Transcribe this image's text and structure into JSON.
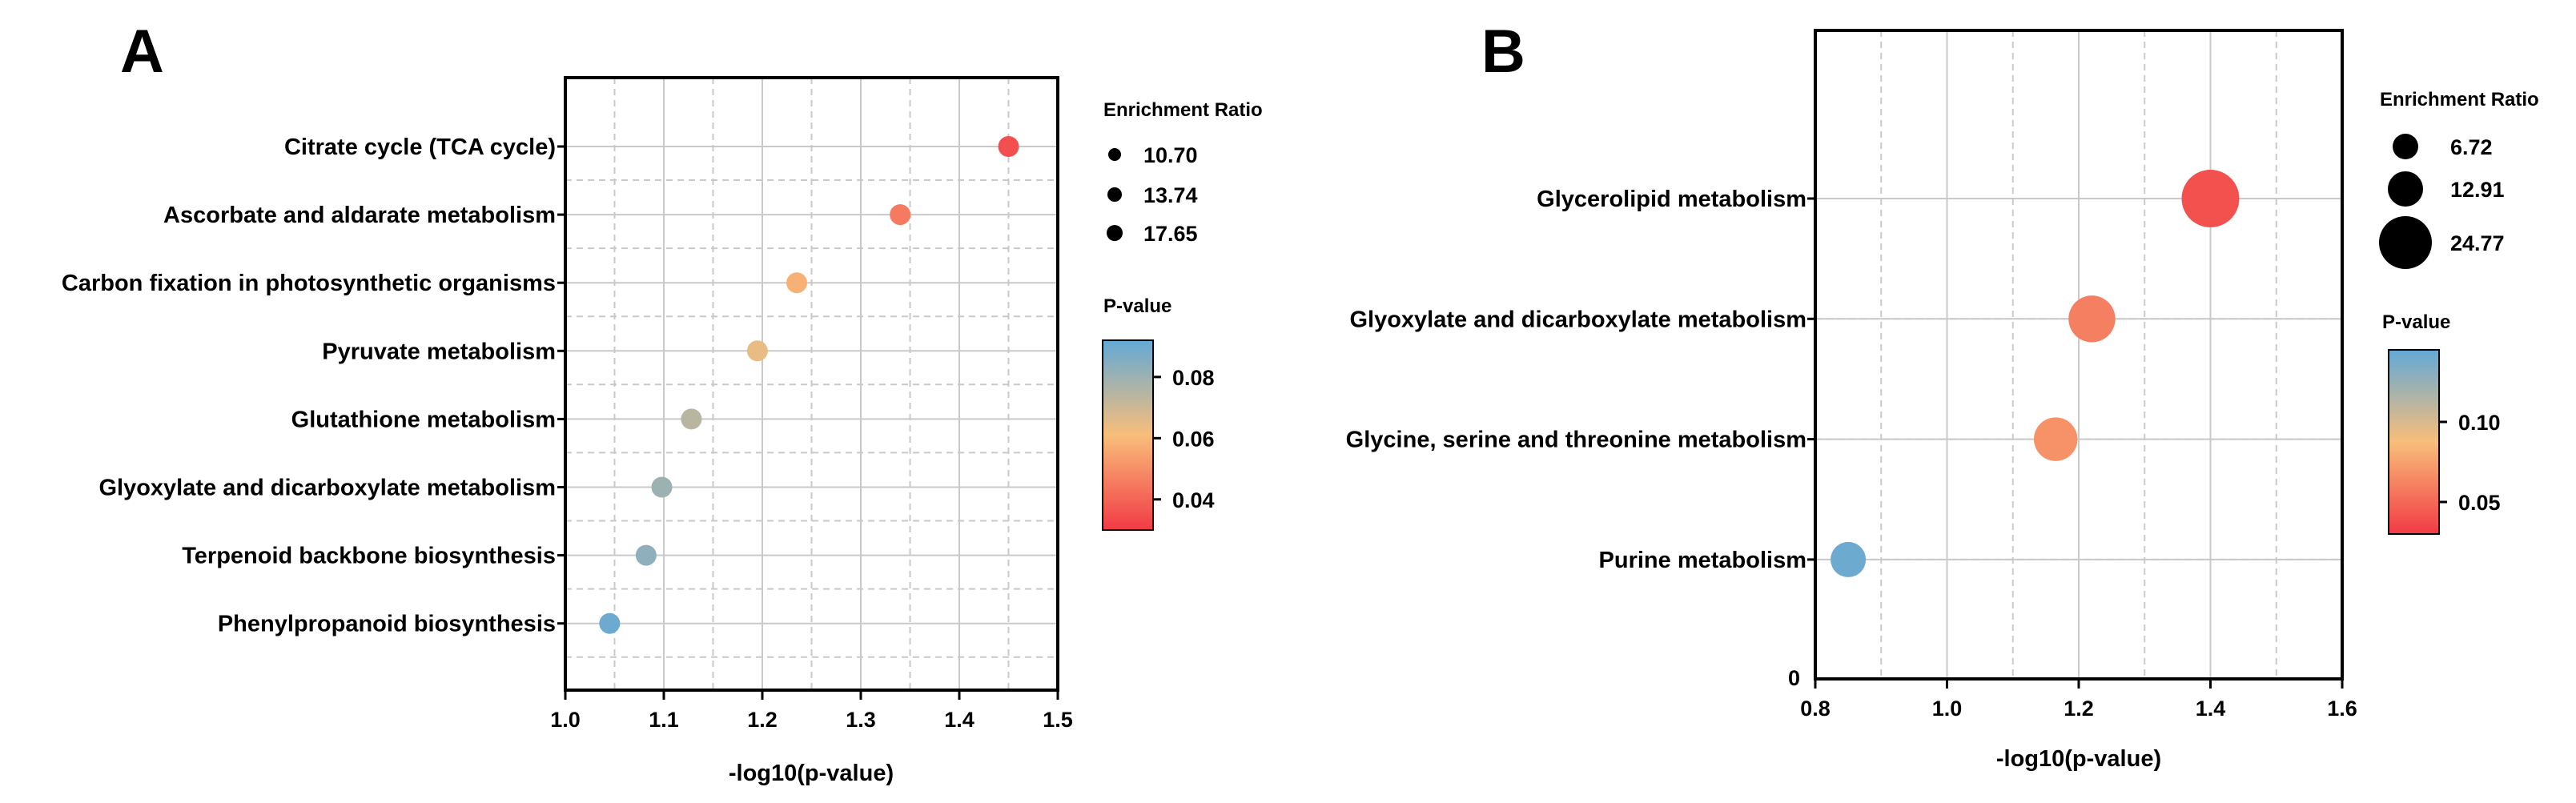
{
  "chart_data": [
    {
      "panel": "A",
      "type": "scatter",
      "title": "",
      "xlabel": "-log10(p-value)",
      "ylabel": "",
      "xlim": [
        1.0,
        1.5
      ],
      "xticks": [
        "1.0",
        "1.1",
        "1.2",
        "1.3",
        "1.4",
        "1.5"
      ],
      "points": [
        {
          "pathway": "Citrate cycle (TCA cycle)",
          "x": 1.45,
          "p_value": 0.035,
          "enrichment_ratio": 10.7
        },
        {
          "pathway": "Ascorbate and aldarate metabolism",
          "x": 1.34,
          "p_value": 0.045,
          "enrichment_ratio": 10.7
        },
        {
          "pathway": "Carbon fixation in photosynthetic organisms",
          "x": 1.235,
          "p_value": 0.058,
          "enrichment_ratio": 10.7
        },
        {
          "pathway": "Pyruvate metabolism",
          "x": 1.195,
          "p_value": 0.064,
          "enrichment_ratio": 10.7
        },
        {
          "pathway": "Glutathione metabolism",
          "x": 1.128,
          "p_value": 0.074,
          "enrichment_ratio": 10.7
        },
        {
          "pathway": "Glyoxylate and dicarboxylate metabolism",
          "x": 1.098,
          "p_value": 0.08,
          "enrichment_ratio": 10.7
        },
        {
          "pathway": "Terpenoid backbone biosynthesis",
          "x": 1.082,
          "p_value": 0.083,
          "enrichment_ratio": 10.7
        },
        {
          "pathway": "Phenylpropanoid biosynthesis",
          "x": 1.045,
          "p_value": 0.09,
          "enrichment_ratio": 10.7
        }
      ],
      "size_legend": {
        "title": "Enrichment Ratio",
        "values": [
          "10.70",
          "13.74",
          "17.65"
        ]
      },
      "color_legend": {
        "title": "P-value",
        "ticks": [
          "0.08",
          "0.06",
          "0.04"
        ],
        "range": [
          0.03,
          0.092
        ]
      }
    },
    {
      "panel": "B",
      "type": "scatter",
      "title": "",
      "xlabel": "-log10(p-value)",
      "ylabel": "",
      "xlim": [
        0.8,
        1.6
      ],
      "xticks": [
        "0.8",
        "1.0",
        "1.2",
        "1.4",
        "1.6"
      ],
      "y_zero_label": "0",
      "points": [
        {
          "pathway": "Glycerolipid metabolism",
          "x": 1.4,
          "p_value": 0.04,
          "enrichment_ratio": 24.77
        },
        {
          "pathway": "Glyoxylate and dicarboxylate metabolism",
          "x": 1.22,
          "p_value": 0.06,
          "enrichment_ratio": 16.0
        },
        {
          "pathway": "Glycine, serine and threonine metabolism",
          "x": 1.165,
          "p_value": 0.068,
          "enrichment_ratio": 13.5
        },
        {
          "pathway": "Purine metabolism",
          "x": 0.85,
          "p_value": 0.141,
          "enrichment_ratio": 6.72
        }
      ],
      "size_legend": {
        "title": "Enrichment Ratio",
        "values": [
          "6.72",
          "12.91",
          "24.77"
        ]
      },
      "color_legend": {
        "title": "P-value",
        "ticks": [
          "0.10",
          "0.05"
        ],
        "range": [
          0.03,
          0.145
        ]
      }
    }
  ],
  "colors": {
    "low_p": "#f23a45",
    "mid_p": "#f8be7a",
    "high_p": "#62a9d6"
  }
}
